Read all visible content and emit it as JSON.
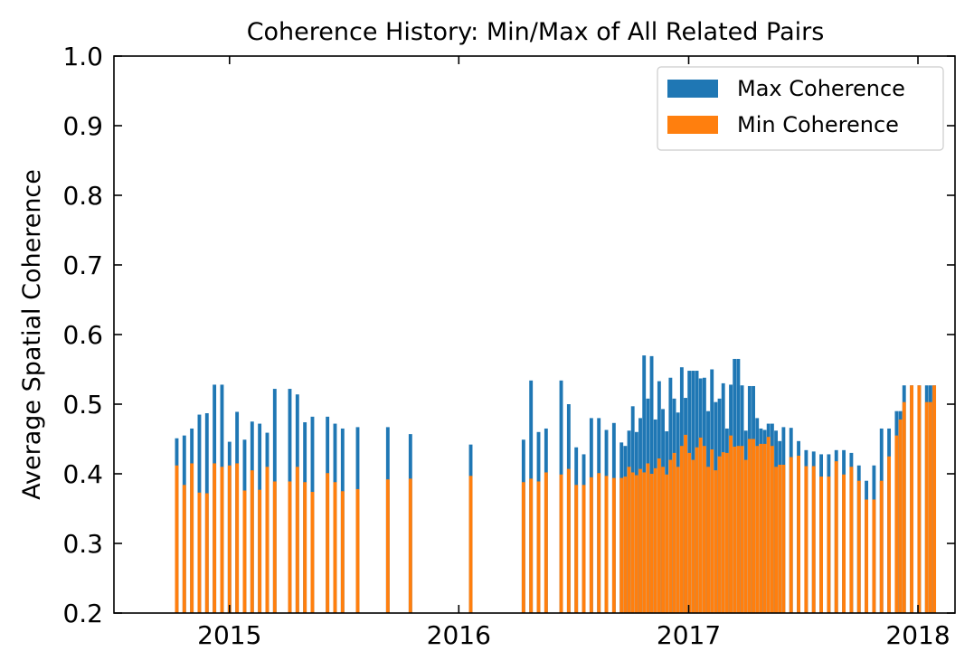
{
  "chart_data": {
    "type": "bar",
    "title": "Coherence History: Min/Max of All Related Pairs",
    "xlabel": "",
    "ylabel": "Average Spatial Coherence",
    "ylim": [
      0.2,
      1.0
    ],
    "xlim": [
      "2014-07-01",
      "2018-03-01"
    ],
    "yticks": [
      0.2,
      0.3,
      0.4,
      0.5,
      0.6,
      0.7,
      0.8,
      0.9,
      1.0
    ],
    "ytick_labels": [
      "0.2",
      "0.3",
      "0.4",
      "0.5",
      "0.6",
      "0.7",
      "0.8",
      "0.9",
      "1.0"
    ],
    "xticks": [
      "2015-01-01",
      "2016-01-01",
      "2017-01-01",
      "2018-01-01"
    ],
    "xtick_labels": [
      "2015",
      "2016",
      "2017",
      "2018"
    ],
    "grid": false,
    "legend_position": "upper right",
    "colors": {
      "max": "#1f77b4",
      "min": "#ff7f0e"
    },
    "x": [
      "2014-10-09",
      "2014-10-21",
      "2014-11-02",
      "2014-11-14",
      "2014-11-26",
      "2014-12-08",
      "2014-12-20",
      "2015-01-01",
      "2015-01-13",
      "2015-01-25",
      "2015-02-06",
      "2015-02-18",
      "2015-03-02",
      "2015-03-14",
      "2015-04-07",
      "2015-04-19",
      "2015-05-01",
      "2015-05-13",
      "2015-06-06",
      "2015-06-18",
      "2015-06-30",
      "2015-07-24",
      "2015-09-10",
      "2015-10-16",
      "2016-01-20",
      "2016-04-13",
      "2016-04-25",
      "2016-05-07",
      "2016-05-19",
      "2016-06-12",
      "2016-06-24",
      "2016-07-06",
      "2016-07-18",
      "2016-07-30",
      "2016-08-11",
      "2016-08-23",
      "2016-09-04",
      "2016-09-16",
      "2016-09-22",
      "2016-09-28",
      "2016-10-04",
      "2016-10-10",
      "2016-10-16",
      "2016-10-22",
      "2016-10-28",
      "2016-11-03",
      "2016-11-09",
      "2016-11-15",
      "2016-11-21",
      "2016-11-27",
      "2016-12-03",
      "2016-12-09",
      "2016-12-15",
      "2016-12-21",
      "2016-12-27",
      "2017-01-02",
      "2017-01-08",
      "2017-01-14",
      "2017-01-20",
      "2017-01-26",
      "2017-02-01",
      "2017-02-07",
      "2017-02-13",
      "2017-02-19",
      "2017-02-25",
      "2017-03-03",
      "2017-03-09",
      "2017-03-15",
      "2017-03-21",
      "2017-03-27",
      "2017-04-02",
      "2017-04-08",
      "2017-04-14",
      "2017-04-20",
      "2017-04-26",
      "2017-05-02",
      "2017-05-08",
      "2017-05-14",
      "2017-05-20",
      "2017-05-26",
      "2017-06-01",
      "2017-06-13",
      "2017-06-25",
      "2017-07-07",
      "2017-07-19",
      "2017-07-31",
      "2017-08-12",
      "2017-08-24",
      "2017-09-05",
      "2017-09-17",
      "2017-09-29",
      "2017-10-11",
      "2017-10-23",
      "2017-11-04",
      "2017-11-16",
      "2017-11-28",
      "2017-12-04",
      "2017-12-10",
      "2017-12-22",
      "2018-01-03",
      "2018-01-15",
      "2018-01-21",
      "2018-01-27"
    ],
    "series": [
      {
        "name": "Max Coherence",
        "values": [
          0.451,
          0.455,
          0.465,
          0.485,
          0.487,
          0.528,
          0.528,
          0.446,
          0.489,
          0.449,
          0.475,
          0.472,
          0.459,
          0.522,
          0.522,
          0.514,
          0.474,
          0.482,
          0.482,
          0.472,
          0.465,
          0.467,
          0.467,
          0.457,
          0.442,
          0.449,
          0.534,
          0.46,
          0.465,
          0.534,
          0.5,
          0.438,
          0.428,
          0.48,
          0.48,
          0.463,
          0.473,
          0.445,
          0.44,
          0.462,
          0.497,
          0.46,
          0.48,
          0.57,
          0.508,
          0.569,
          0.478,
          0.533,
          0.493,
          0.461,
          0.538,
          0.508,
          0.488,
          0.553,
          0.509,
          0.548,
          0.548,
          0.548,
          0.537,
          0.538,
          0.49,
          0.55,
          0.503,
          0.508,
          0.53,
          0.465,
          0.528,
          0.565,
          0.565,
          0.527,
          0.462,
          0.526,
          0.526,
          0.48,
          0.465,
          0.463,
          0.472,
          0.472,
          0.462,
          0.447,
          0.467,
          0.466,
          0.447,
          0.434,
          0.432,
          0.428,
          0.428,
          0.434,
          0.434,
          0.43,
          0.412,
          0.39,
          0.412,
          0.465,
          0.465,
          0.49,
          0.49,
          0.527,
          0.527,
          0.527,
          0.527,
          0.527,
          0.527
        ],
        "values_note_min_series_below": ""
      },
      {
        "name": "Min Coherence",
        "values": [
          0.412,
          0.384,
          0.415,
          0.373,
          0.372,
          0.415,
          0.41,
          0.412,
          0.415,
          0.376,
          0.405,
          0.377,
          0.41,
          0.389,
          0.389,
          0.41,
          0.388,
          0.374,
          0.401,
          0.388,
          0.375,
          0.378,
          0.392,
          0.393,
          0.397,
          0.388,
          0.393,
          0.389,
          0.402,
          0.399,
          0.407,
          0.384,
          0.384,
          0.395,
          0.401,
          0.397,
          0.394,
          0.394,
          0.396,
          0.41,
          0.402,
          0.398,
          0.407,
          0.402,
          0.415,
          0.4,
          0.408,
          0.422,
          0.41,
          0.399,
          0.42,
          0.43,
          0.41,
          0.44,
          0.456,
          0.43,
          0.42,
          0.438,
          0.452,
          0.44,
          0.41,
          0.435,
          0.405,
          0.425,
          0.431,
          0.43,
          0.455,
          0.439,
          0.44,
          0.44,
          0.42,
          0.45,
          0.45,
          0.44,
          0.443,
          0.443,
          0.453,
          0.44,
          0.41,
          0.413,
          0.413,
          0.424,
          0.426,
          0.411,
          0.411,
          0.396,
          0.396,
          0.418,
          0.399,
          0.41,
          0.39,
          0.363,
          0.363,
          0.39,
          0.425,
          0.455,
          0.478,
          0.503,
          0.527,
          0.527,
          0.503,
          0.503,
          0.527
        ]
      }
    ]
  }
}
